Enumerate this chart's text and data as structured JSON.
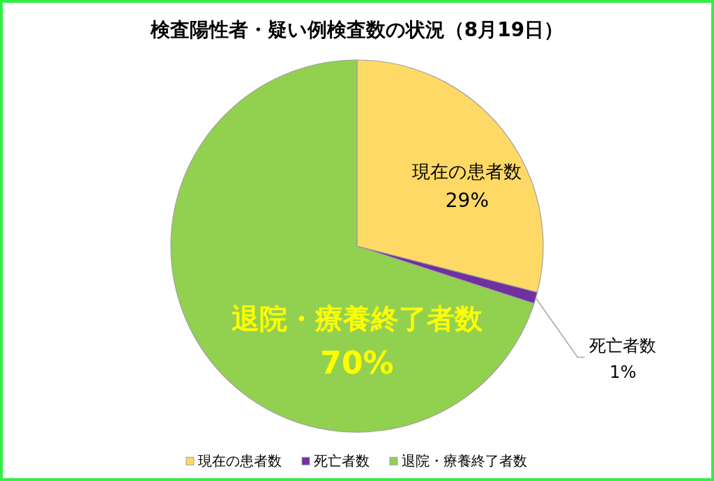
{
  "chart_data": {
    "type": "pie",
    "title": "検査陽性者・疑い例検査数の状況（8月19日）",
    "categories": [
      "現在の患者数",
      "死亡者数",
      "退院・療養終了者数"
    ],
    "values": [
      29,
      1,
      70
    ],
    "colors": [
      "#ffd966",
      "#7030a0",
      "#92d050"
    ],
    "value_labels": [
      "29%",
      "1%",
      "70%"
    ],
    "legend": "bottom"
  }
}
